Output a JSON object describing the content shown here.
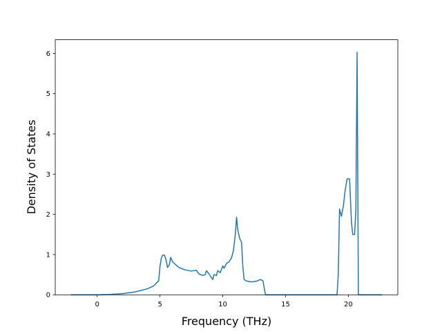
{
  "chart_data": {
    "type": "line",
    "xlabel": "Frequency (THz)",
    "ylabel": "Density of States",
    "x": [
      -2.1,
      0,
      1,
      2,
      3,
      4,
      4.5,
      4.9,
      5.0,
      5.1,
      5.2,
      5.35,
      5.5,
      5.6,
      5.75,
      5.85,
      6.0,
      6.5,
      7.0,
      7.5,
      7.9,
      8.1,
      8.4,
      8.6,
      8.7,
      8.9,
      9.2,
      9.3,
      9.5,
      9.6,
      9.8,
      10.0,
      10.1,
      10.3,
      10.5,
      10.7,
      10.85,
      11.0,
      11.1,
      11.2,
      11.35,
      11.5,
      11.6,
      11.7,
      11.9,
      12.3,
      12.7,
      13.0,
      13.2,
      13.4,
      19.1,
      19.2,
      19.3,
      19.45,
      19.6,
      19.75,
      19.9,
      20.1,
      20.25,
      20.35,
      20.5,
      20.6,
      20.7,
      20.8,
      22.7
    ],
    "series": [
      {
        "color": "#1f77b4",
        "values": [
          0,
          0,
          0.01,
          0.03,
          0.07,
          0.15,
          0.22,
          0.35,
          0.7,
          0.9,
          0.98,
          0.99,
          0.85,
          0.68,
          0.75,
          0.93,
          0.82,
          0.68,
          0.62,
          0.59,
          0.61,
          0.52,
          0.48,
          0.5,
          0.6,
          0.52,
          0.38,
          0.5,
          0.48,
          0.6,
          0.55,
          0.72,
          0.66,
          0.78,
          0.82,
          0.92,
          1.1,
          1.5,
          1.93,
          1.6,
          1.4,
          1.3,
          0.7,
          0.38,
          0.34,
          0.32,
          0.34,
          0.38,
          0.35,
          0,
          0,
          0.5,
          2.13,
          1.95,
          2.2,
          2.6,
          2.88,
          2.88,
          1.8,
          1.5,
          1.5,
          2.1,
          6.03,
          0,
          0
        ]
      }
    ],
    "xlim": [
      -3.34,
      23.94
    ],
    "xticks": [
      0,
      5,
      10,
      15,
      20
    ],
    "ylim": [
      0,
      6.34
    ],
    "yticks": [
      0,
      1,
      2,
      3,
      4,
      5,
      6
    ]
  }
}
